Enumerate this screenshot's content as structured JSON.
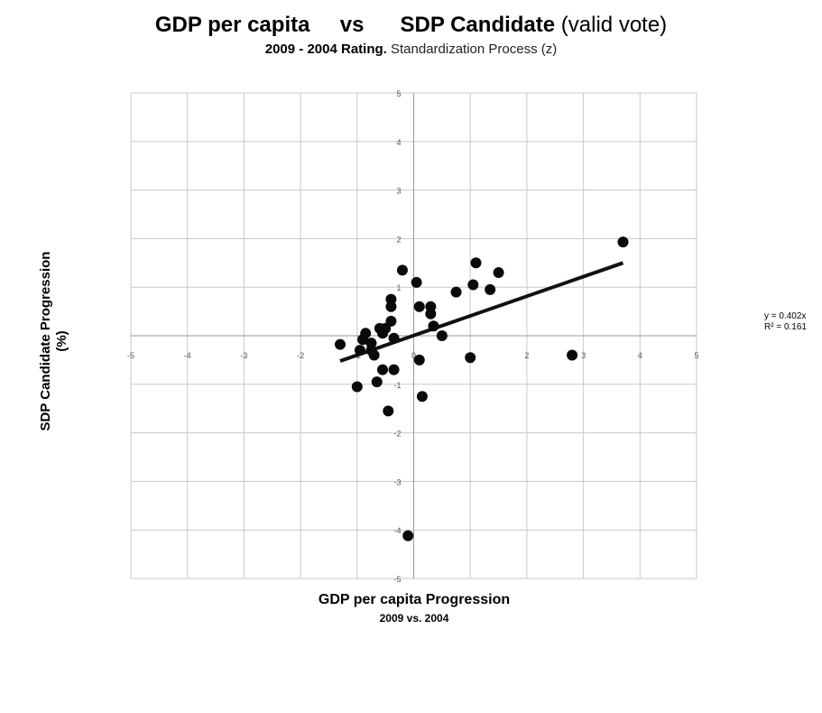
{
  "title": {
    "part1": "GDP per capita",
    "part2": "vs",
    "part3": "SDP Candidate",
    "part4": "(valid vote)"
  },
  "subtitle": {
    "bold": "2009 - 2004 Rating.",
    "normal": "Standardization Process (z)"
  },
  "trendline_label": {
    "equation": "y = 0.402x",
    "r2": "R² = 0.161"
  },
  "chart_data": {
    "type": "scatter",
    "xlabel": "GDP per capita Progression",
    "xlabel_sub": "2009 vs. 2004",
    "ylabel": "SDP Candidate Progression",
    "ylabel_sub": "(%)",
    "xlim": [
      -5,
      5
    ],
    "ylim": [
      -5,
      5
    ],
    "x_ticks": [
      -5,
      -4,
      -3,
      -2,
      -1,
      0,
      1,
      2,
      3,
      4,
      5
    ],
    "y_ticks": [
      -5,
      -4,
      -3,
      -2,
      -1,
      1,
      2,
      3,
      4,
      5
    ],
    "grid": true,
    "series": [
      {
        "points": [
          [
            -1.3,
            -0.18
          ],
          [
            -1.0,
            -1.05
          ],
          [
            -0.95,
            -0.3
          ],
          [
            -0.9,
            -0.08
          ],
          [
            -0.85,
            0.05
          ],
          [
            -0.75,
            -0.15
          ],
          [
            -0.75,
            -0.3
          ],
          [
            -0.7,
            -0.4
          ],
          [
            -0.65,
            -0.95
          ],
          [
            -0.6,
            0.15
          ],
          [
            -0.55,
            0.05
          ],
          [
            -0.5,
            0.15
          ],
          [
            -0.55,
            -0.7
          ],
          [
            -0.45,
            -1.55
          ],
          [
            -0.4,
            0.3
          ],
          [
            -0.4,
            0.6
          ],
          [
            -0.4,
            0.75
          ],
          [
            -0.35,
            -0.05
          ],
          [
            -0.35,
            -0.7
          ],
          [
            -0.2,
            1.35
          ],
          [
            -0.1,
            -4.12
          ],
          [
            0.05,
            1.1
          ],
          [
            0.1,
            -0.5
          ],
          [
            0.1,
            0.6
          ],
          [
            0.15,
            -1.25
          ],
          [
            0.3,
            0.6
          ],
          [
            0.3,
            0.45
          ],
          [
            0.35,
            0.2
          ],
          [
            0.5,
            0.0
          ],
          [
            0.75,
            0.9
          ],
          [
            1.0,
            -0.45
          ],
          [
            1.05,
            1.05
          ],
          [
            1.1,
            1.5
          ],
          [
            1.35,
            0.95
          ],
          [
            1.5,
            1.3
          ],
          [
            2.8,
            -0.4
          ],
          [
            3.7,
            1.93
          ]
        ]
      }
    ],
    "trendline": {
      "x": [
        -1.3,
        3.7
      ],
      "y": [
        -0.52,
        1.5
      ]
    }
  }
}
